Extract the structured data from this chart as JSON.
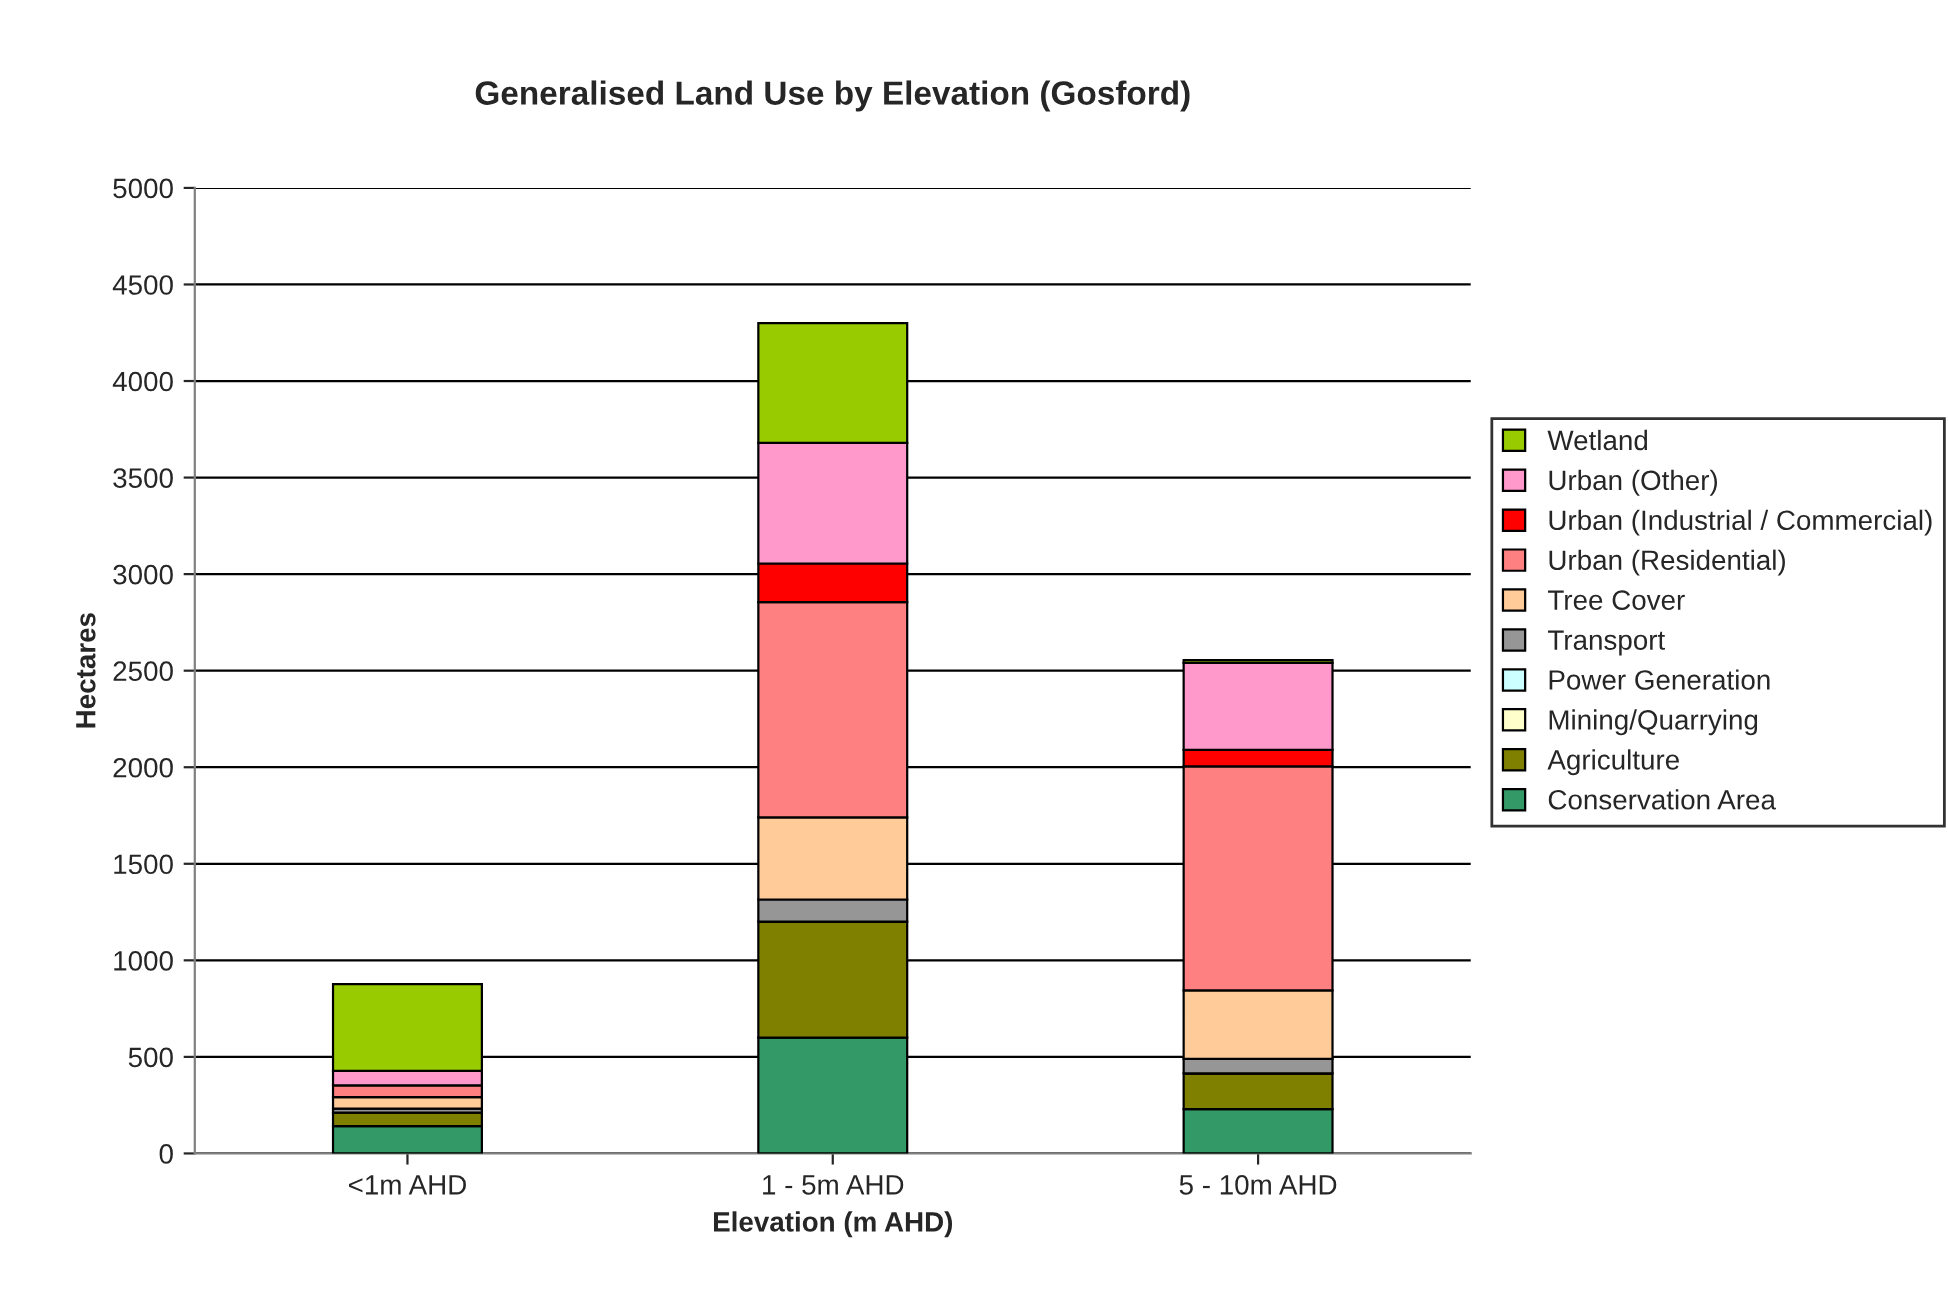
{
  "chart_data": {
    "type": "bar",
    "stacked": true,
    "title": "Generalised Land Use by Elevation (Gosford)",
    "xlabel": "Elevation (m AHD)",
    "ylabel": "Hectares",
    "categories": [
      "<1m AHD",
      "1 - 5m AHD",
      "5 - 10m AHD"
    ],
    "series": [
      {
        "name": "Conservation Area",
        "color": "#339966",
        "values": [
          142,
          600,
          230
        ]
      },
      {
        "name": "Agriculture",
        "color": "#808000",
        "values": [
          70,
          600,
          185
        ]
      },
      {
        "name": "Mining/Quarrying",
        "color": "#ffffcc",
        "values": [
          0,
          0,
          0
        ]
      },
      {
        "name": "Power Generation",
        "color": "#ccffff",
        "values": [
          0,
          0,
          0
        ]
      },
      {
        "name": "Transport",
        "color": "#969696",
        "values": [
          20,
          115,
          75
        ]
      },
      {
        "name": "Tree Cover",
        "color": "#ffcc99",
        "values": [
          60,
          425,
          355
        ]
      },
      {
        "name": "Urban (Residential)",
        "color": "#ff8080",
        "values": [
          60,
          1115,
          1160
        ]
      },
      {
        "name": "Urban (Industrial / Commercial)",
        "color": "#ff0000",
        "values": [
          null,
          200,
          85
        ]
      },
      {
        "name": "Urban (Other)",
        "color": "#ff99cc",
        "values": [
          75,
          625,
          450
        ]
      },
      {
        "name": "Wetland",
        "color": "#99cc00",
        "values": [
          450,
          620,
          15
        ]
      }
    ],
    "ylim": [
      0,
      5000
    ],
    "yticks": [
      0,
      500,
      1000,
      1500,
      2000,
      2500,
      3000,
      3500,
      4000,
      4500,
      5000
    ],
    "grid": "y",
    "legend": "right"
  }
}
